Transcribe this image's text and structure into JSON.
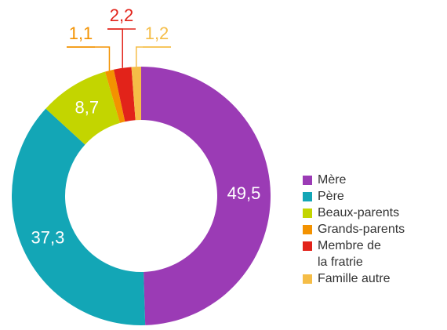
{
  "chart_data": {
    "type": "donut",
    "categories": [
      "Mère",
      "Père",
      "Beaux-parents",
      "Grands-parents",
      "Membre de\nla fratrie",
      "Famille autre"
    ],
    "values": [
      49.5,
      37.3,
      8.7,
      1.1,
      2.2,
      1.2
    ],
    "value_labels": [
      "49,5",
      "37,3",
      "8,7",
      "1,1",
      "2,2",
      "1,2"
    ],
    "colors": [
      "#9b3bb5",
      "#13a6b6",
      "#c3d500",
      "#f39200",
      "#e2231a",
      "#f5bd47"
    ],
    "legend": "right"
  }
}
